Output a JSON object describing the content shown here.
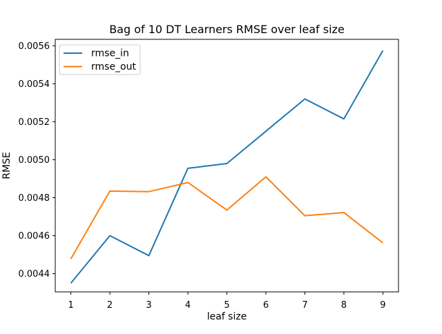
{
  "figure": {
    "background": "#ffffff"
  },
  "chart_data": {
    "type": "line",
    "title": "Bag of 10 DT Learners RMSE over leaf size",
    "xlabel": "leaf size",
    "ylabel": "RMSE",
    "x": [
      1,
      2,
      3,
      4,
      5,
      6,
      7,
      8,
      9
    ],
    "series": [
      {
        "name": "rmse_in",
        "color": "#1f77b4",
        "values": [
          0.00435,
          0.0046,
          0.004495,
          0.004955,
          0.00498,
          0.00515,
          0.00532,
          0.005215,
          0.005575
        ]
      },
      {
        "name": "rmse_out",
        "color": "#ff7f0e",
        "values": [
          0.004478,
          0.004835,
          0.004832,
          0.00488,
          0.004735,
          0.00491,
          0.004705,
          0.004722,
          0.004562
        ]
      }
    ],
    "xlim": [
      0.6,
      9.4
    ],
    "ylim": [
      0.004304,
      0.005634
    ],
    "xticks": {
      "values": [
        1,
        2,
        3,
        4,
        5,
        6,
        7,
        8,
        9
      ],
      "labels": [
        "1",
        "2",
        "3",
        "4",
        "5",
        "6",
        "7",
        "8",
        "9"
      ]
    },
    "yticks": {
      "values": [
        0.0044,
        0.0046,
        0.0048,
        0.005,
        0.0052,
        0.0054,
        0.0056
      ],
      "labels": [
        "0.0044",
        "0.0046",
        "0.0048",
        "0.0050",
        "0.0052",
        "0.0054",
        "0.0056"
      ]
    },
    "grid": false,
    "legend": {
      "position": "upper left",
      "entries": [
        "rmse_in",
        "rmse_out"
      ],
      "border_color": "#cccccc",
      "background": "#ffffff"
    },
    "frame_color": "#000000",
    "text_color": "#000000"
  }
}
